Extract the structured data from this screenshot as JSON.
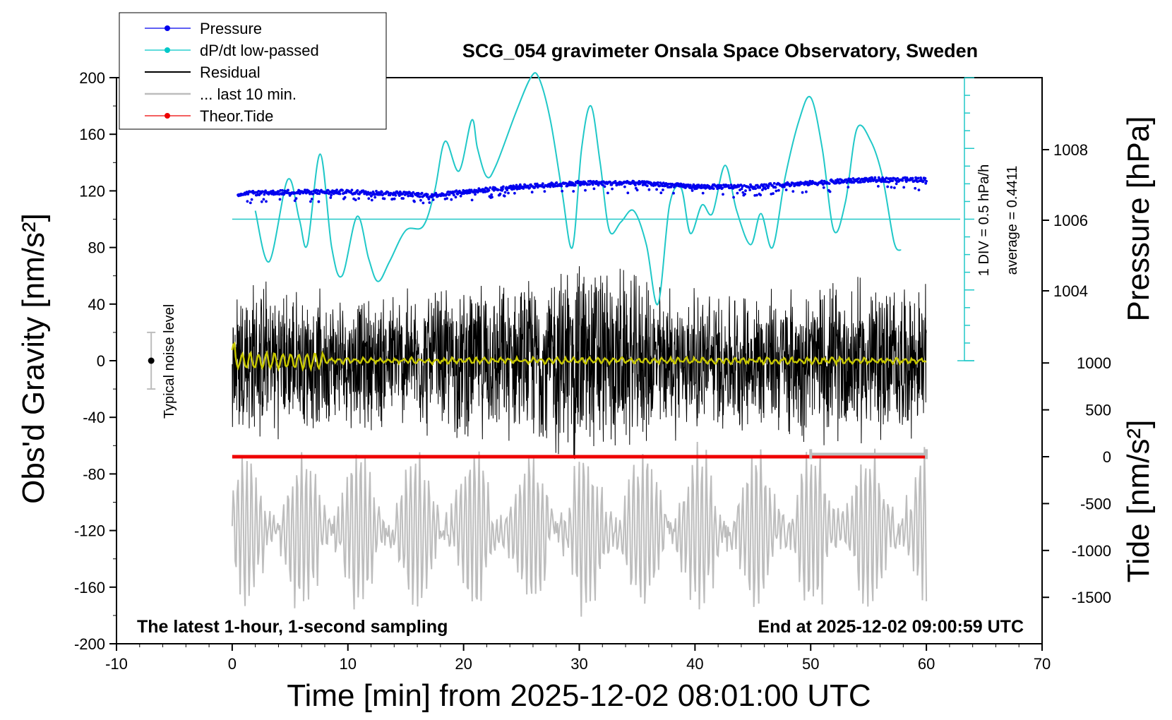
{
  "chart_data": {
    "type": "line",
    "title": "SCG_054 gravimeter Onsala Space Observatory, Sweden",
    "xlabel": "Time [min] from 2025-12-02 08:01:00 UTC",
    "ylabel": "Obs'd Gravity [nm/s²]",
    "y2label": "Pressure [hPa]",
    "y3label": "Tide [nm/s²]",
    "xlim": [
      -10,
      70
    ],
    "ylim": [
      -200,
      200
    ],
    "pressure_lim": [
      1002,
      1010
    ],
    "tide_lim": [
      -1500,
      1500
    ],
    "x_ticks": [
      "-10",
      "0",
      "10",
      "20",
      "30",
      "40",
      "50",
      "60",
      "70"
    ],
    "y_ticks": [
      "200",
      "160",
      "120",
      "80",
      "40",
      "0",
      "-40",
      "-80",
      "-120",
      "-160",
      "-200"
    ],
    "pressure_ticks": [
      "1008",
      "1006",
      "1004"
    ],
    "tide_ticks": [
      "1000",
      "500",
      "0",
      "-500",
      "-1000",
      "-1500"
    ],
    "bottom_left_note": "The latest 1-hour, 1-second sampling",
    "bottom_right_note": "End at 2025-12-02 09:00:59 UTC",
    "noise_label": "Typical noise level",
    "dpdt_scale_label": "1 DIV = 0.5 hPa/h",
    "dpdt_average_label": "average = 0.4411",
    "legend": [
      {
        "name": "Pressure",
        "color": "#0000ee",
        "marker": true
      },
      {
        "name": "dP/dt low-passed",
        "color": "#00c8c8",
        "marker": true
      },
      {
        "name": "Residual",
        "color": "#000000",
        "marker": false
      },
      {
        "name": "... last 10 min.",
        "color": "#bdbdbd",
        "marker": false
      },
      {
        "name": "Theor.Tide",
        "color": "#ee0000",
        "marker": true
      }
    ],
    "legend_position": "top-left",
    "colors": {
      "pressure": "#0000ee",
      "dpdt": "#20c8c8",
      "residual": "#000000",
      "residual_lowpass": "#c8c800",
      "last10": "#bdbdbd",
      "tide": "#ee0000"
    },
    "series": [
      {
        "name": "Pressure",
        "axis": "pressure_hPa",
        "x": [
          0.5,
          5,
          10,
          15,
          17,
          20,
          25,
          30,
          35,
          40,
          45,
          50,
          55,
          60
        ],
        "values": [
          1006.75,
          1006.8,
          1006.8,
          1006.75,
          1006.7,
          1006.8,
          1006.95,
          1007.05,
          1007.05,
          1006.95,
          1006.95,
          1007.05,
          1007.15,
          1007.15
        ]
      },
      {
        "name": "dP/dt low-passed",
        "axis": "gravity_scaled",
        "x": [
          2,
          3.2,
          4.8,
          5.8,
          6.5,
          7.6,
          8.6,
          9.5,
          10.8,
          11.8,
          12.6,
          13.6,
          15,
          16.5,
          17.5,
          18.4,
          19.6,
          20.7,
          21.2,
          22,
          22.8,
          24.5,
          25.8,
          26.5,
          27.5,
          28.5,
          29.4,
          30.2,
          31,
          31.8,
          32.6,
          33.6,
          34.7,
          35.8,
          36.8,
          37.8,
          38.8,
          39.6,
          40.6,
          41.5,
          42.6,
          43.6,
          44.8,
          45.7,
          46.7,
          47.8,
          49,
          50,
          51,
          52,
          53,
          54,
          55.2,
          56.2,
          57.2,
          57.8
        ],
        "values": [
          106,
          70,
          128,
          100,
          82,
          146,
          80,
          60,
          102,
          72,
          56,
          70,
          92,
          95,
          120,
          155,
          134,
          170,
          150,
          130,
          138,
          175,
          200,
          200,
          170,
          120,
          80,
          150,
          180,
          140,
          92,
          98,
          106,
          82,
          40,
          110,
          122,
          90,
          110,
          104,
          138,
          106,
          82,
          104,
          80,
          130,
          170,
          186,
          150,
          92,
          112,
          164,
          155,
          130,
          84,
          78
        ]
      },
      {
        "name": "Residual",
        "axis": "gravity_nm_s2",
        "x_range": [
          0,
          60
        ],
        "envelope": {
          "x": [
            0,
            5,
            10,
            15,
            20,
            25,
            30,
            35,
            40,
            45,
            50,
            55,
            60
          ],
          "amplitude": [
            70,
            55,
            50,
            55,
            60,
            60,
            85,
            65,
            55,
            55,
            60,
            65,
            55
          ]
        }
      },
      {
        "name": "... last 10 min.",
        "axis": "gravity_nm_s2",
        "x_range": [
          0,
          60
        ],
        "center": -120,
        "amplitude": 55
      },
      {
        "name": "Theor.Tide",
        "axis": "tide_nm_s2",
        "x": [
          0,
          60
        ],
        "values": [
          0,
          0
        ]
      }
    ],
    "noise_bar": {
      "x": -7,
      "low": -20,
      "high": 20
    },
    "last10_bracket": {
      "x_start": 50,
      "x_end": 60,
      "y": -66
    }
  }
}
